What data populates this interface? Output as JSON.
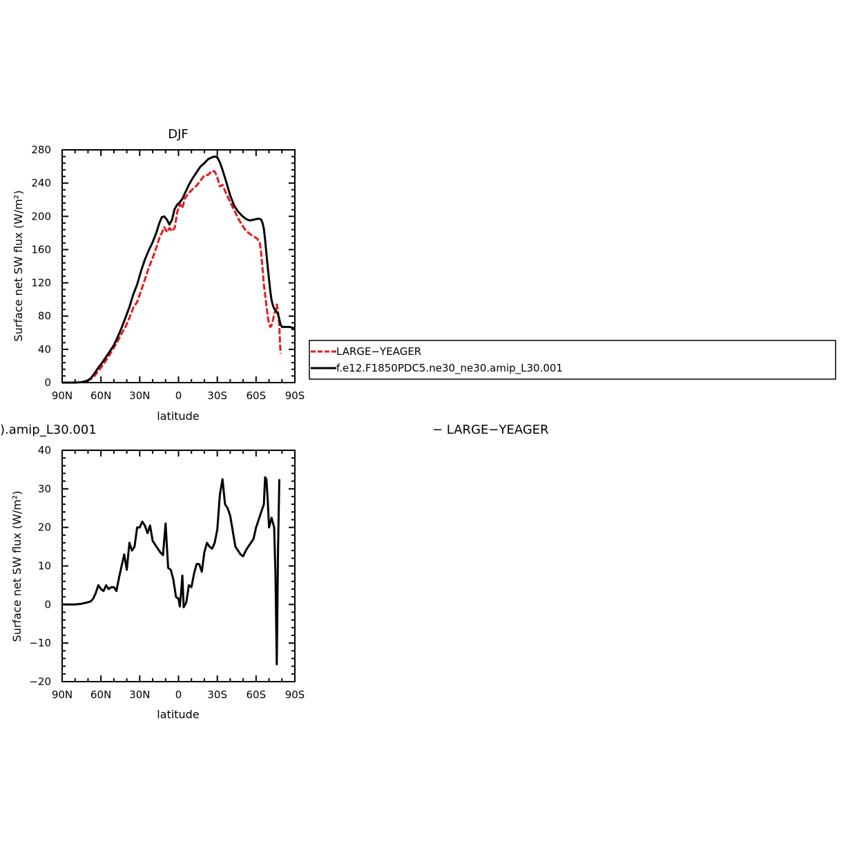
{
  "chart_data": [
    {
      "type": "line",
      "title": "DJF",
      "xlabel": "latitude",
      "ylabel": "Surface net SW flux (W/m²)",
      "x_ticks": [
        -90,
        -60,
        -30,
        0,
        30,
        60,
        90
      ],
      "x_tick_labels": [
        "90N",
        "60N",
        "30N",
        "0",
        "30S",
        "60S",
        "90S"
      ],
      "xlim": [
        -90,
        90
      ],
      "ylim": [
        0,
        280
      ],
      "y_ticks": [
        0,
        40,
        80,
        120,
        160,
        200,
        240,
        280
      ],
      "y_tick_labels": [
        "0",
        "40",
        "80",
        "120",
        "160",
        "200",
        "240",
        "280"
      ],
      "grid": false,
      "legend": {
        "placement": "right",
        "entries": [
          "LARGE−YEAGER",
          "f.e12.F1850PDC5.ne30_ne30.amip_L30.001"
        ]
      },
      "series": [
        {
          "name": "LARGE−YEAGER",
          "color": "#e8191b",
          "dash": "dashed",
          "x": [
            -90,
            -85,
            -80,
            -75,
            -71,
            -68,
            -65,
            -62,
            -59,
            -56,
            -53,
            -50,
            -47,
            -44,
            -41,
            -38,
            -35,
            -32,
            -29,
            -26,
            -23,
            -20,
            -17,
            -15,
            -13,
            -11,
            -9,
            -7,
            -5,
            -3,
            -1,
            1,
            3,
            5,
            8,
            11,
            14,
            17,
            20,
            23,
            26,
            28,
            30,
            32,
            34,
            37,
            40,
            43,
            46,
            49,
            52,
            55,
            58,
            61,
            63,
            64,
            65,
            66,
            67,
            68,
            69,
            70,
            71,
            72,
            73,
            74,
            75,
            76,
            77,
            78,
            78.5,
            79
          ],
          "values": [
            0,
            0,
            0,
            0.5,
            2,
            4,
            8,
            14,
            20,
            27,
            34,
            42,
            50,
            59,
            67,
            78,
            90,
            97,
            110,
            124,
            138,
            150,
            163,
            173,
            180,
            187,
            181,
            186,
            182,
            186,
            205,
            215,
            210,
            222,
            228,
            233,
            237,
            243,
            249,
            250,
            255,
            254,
            247,
            236,
            238,
            227,
            217,
            208,
            198,
            190,
            183,
            179,
            176,
            173,
            168,
            155,
            137,
            118,
            106,
            93,
            80,
            71,
            67,
            69,
            75,
            82,
            88,
            94,
            85,
            68,
            47,
            35
          ]
        },
        {
          "name": "f.e12.F1850PDC5.ne30_ne30.amip_L30.001",
          "color": "#000000",
          "dash": "solid",
          "x": [
            -90,
            -85,
            -80,
            -75,
            -71,
            -68,
            -65,
            -62,
            -59,
            -56,
            -53,
            -50,
            -47,
            -44,
            -41,
            -38,
            -35,
            -32,
            -29,
            -26,
            -23,
            -20,
            -17,
            -15,
            -13,
            -11,
            -9,
            -7,
            -5,
            -3,
            -1,
            1,
            3,
            5,
            8,
            11,
            14,
            17,
            20,
            23,
            26,
            28,
            30,
            32,
            34,
            37,
            40,
            43,
            46,
            49,
            52,
            55,
            58,
            61,
            63,
            64,
            65,
            66,
            67,
            68,
            69,
            70,
            71,
            72,
            73,
            74,
            75,
            76,
            77,
            78,
            79,
            80,
            82,
            84,
            86,
            88,
            90
          ],
          "values": [
            0,
            0,
            0,
            0.5,
            2,
            5,
            11,
            18,
            24,
            31,
            38,
            45,
            55,
            66,
            78,
            91,
            106,
            118,
            134,
            148,
            159,
            169,
            181,
            191,
            199,
            200,
            196,
            190,
            196,
            209,
            214,
            217,
            221,
            228,
            238,
            246,
            253,
            260,
            264,
            269,
            271,
            272,
            271,
            265,
            256,
            241,
            225,
            213,
            206,
            201,
            197,
            195,
            196,
            197,
            197,
            196,
            192,
            185,
            172,
            155,
            139,
            124,
            110,
            99,
            93,
            89,
            87,
            85,
            82,
            76,
            70,
            67,
            67,
            67,
            67,
            66,
            66
          ]
        }
      ]
    },
    {
      "type": "line",
      "title": "",
      "partial_labels": [
        ").amip_L30.001",
        "− LARGE−YEAGER"
      ],
      "xlabel": "latitude",
      "ylabel": "Surface net SW flux (W/m²)",
      "x_ticks": [
        -90,
        -60,
        -30,
        0,
        30,
        60,
        90
      ],
      "x_tick_labels": [
        "90N",
        "60N",
        "30N",
        "0",
        "30S",
        "60S",
        "90S"
      ],
      "xlim": [
        -90,
        90
      ],
      "ylim": [
        -20,
        40
      ],
      "y_ticks": [
        -20,
        -10,
        0,
        10,
        20,
        30,
        40
      ],
      "y_tick_labels": [
        "−20",
        "−10",
        "0",
        "10",
        "20",
        "30",
        "40"
      ],
      "grid": false,
      "series": [
        {
          "color": "#000000",
          "dash": "solid",
          "x": [
            -90,
            -85,
            -80,
            -75,
            -71,
            -68,
            -66,
            -64,
            -62,
            -60,
            -58,
            -56,
            -54,
            -52,
            -50,
            -48,
            -46,
            -44,
            -42,
            -40,
            -38,
            -36,
            -34,
            -32,
            -30,
            -28,
            -26,
            -24,
            -22,
            -20,
            -18,
            -16,
            -14,
            -12,
            -10,
            -8,
            -6,
            -4,
            -2,
            0,
            1,
            2,
            3,
            4,
            6,
            8,
            10,
            12,
            14,
            16,
            18,
            20,
            22,
            24,
            26,
            28,
            30,
            32,
            34,
            36,
            38,
            40,
            42,
            44,
            46,
            48,
            50,
            52,
            54,
            56,
            58,
            60,
            62,
            64,
            65,
            66,
            67,
            68,
            69,
            70,
            72,
            74,
            75,
            76,
            77,
            78
          ],
          "values": [
            0,
            0,
            0,
            0.2,
            0.5,
            0.8,
            1.5,
            3,
            5,
            4,
            3.5,
            5,
            4,
            4.5,
            4.5,
            3.5,
            7,
            10,
            13,
            9,
            16,
            14,
            15,
            20,
            20,
            21.5,
            20.5,
            18.5,
            20.5,
            16.5,
            15.5,
            14.5,
            13.5,
            12.8,
            21,
            9.5,
            9,
            6.5,
            2,
            1.5,
            -0.5,
            3,
            7.5,
            -0.7,
            0.5,
            5,
            4.5,
            8,
            10.5,
            10.5,
            8.5,
            13.5,
            16,
            15,
            14.5,
            16,
            19.5,
            28.5,
            32.5,
            26,
            25,
            23,
            19,
            15,
            14,
            13,
            12.5,
            14,
            15,
            16,
            17,
            20,
            22,
            24,
            25,
            26,
            33,
            32.5,
            27,
            20,
            22.5,
            20,
            8,
            -15.5,
            15,
            32.5
          ]
        }
      ]
    }
  ]
}
